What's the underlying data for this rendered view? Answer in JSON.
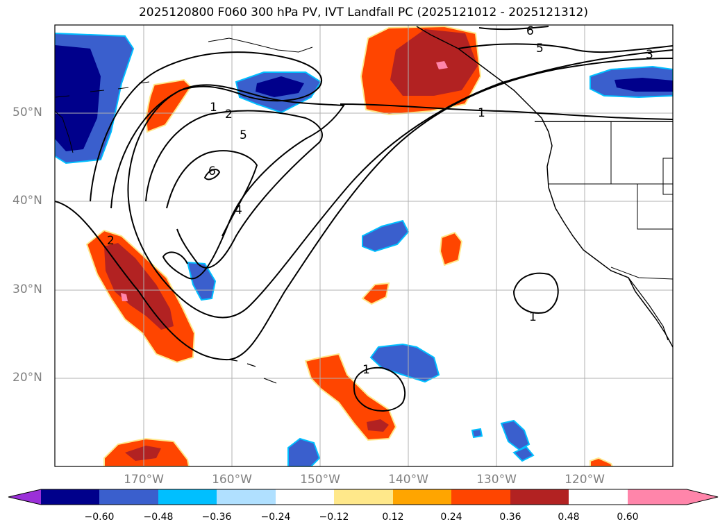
{
  "title": "2025120800 F060 300 hPa PV, IVT Landfall PC (2025121012 - 2025121312)",
  "latitude_labels": [
    "50°N",
    "40°N",
    "30°N",
    "20°N"
  ],
  "longitude_labels": [
    "170°W",
    "160°W",
    "150°W",
    "140°W",
    "130°W",
    "120°W"
  ],
  "contour_labels": [
    "6",
    "5",
    "3",
    "1",
    "1",
    "2",
    "5",
    "6",
    "4",
    "2",
    "1",
    "1"
  ],
  "colorbar": {
    "ticks": [
      "−0.60",
      "−0.48",
      "−0.36",
      "−0.24",
      "−0.12",
      "0.12",
      "0.24",
      "0.36",
      "0.48",
      "0.60"
    ],
    "colors": [
      "#9b30d9",
      "#00008b",
      "#3a5fcd",
      "#00bfff",
      "#b0e0ff",
      "#ffffff",
      "#ffe88a",
      "#ffa500",
      "#ff4500",
      "#b22222",
      "#ff85aa"
    ]
  }
}
